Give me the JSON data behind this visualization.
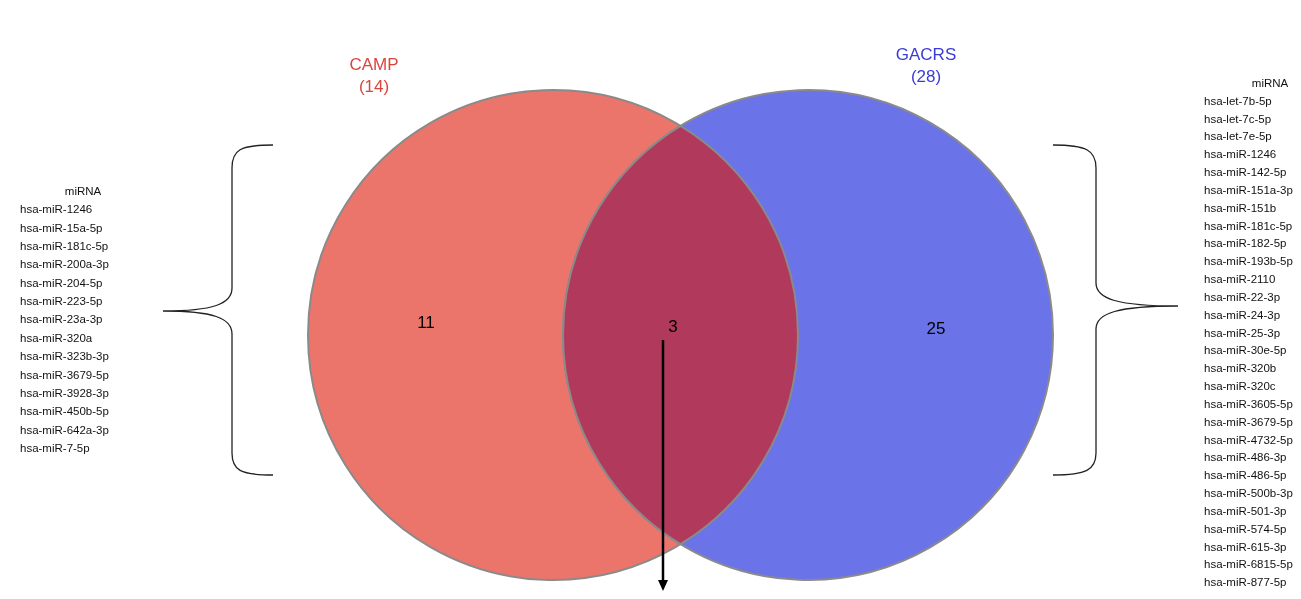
{
  "chart_data": {
    "type": "other",
    "categories": [
      null,
      null,
      null
    ],
    "values": [
      11,
      3,
      25
    ],
    "colors": [
      "#ec756b",
      "#b13a5c",
      "#6b73e9"
    ],
    "data_labels": true,
    "annotations": [
      "CAMP\n(14)",
      "GACRS\n(28)",
      "miRNA\nhsa-miR-1246\nhsa-miR-15a-5p\nhsa-miR-181c-5p\nhsa-miR-200a-3p\nhsa-miR-204-5p\nhsa-miR-223-5p\nhsa-miR-23a-3p\nhsa-miR-320a\nhsa-miR-323b-3p\nhsa-miR-3679-5p\nhsa-miR-3928-3p\nhsa-miR-450b-5p\nhsa-miR-642a-3p\nhsa-miR-7-5p",
      "miRNA\nhsa-let-7b-5p\nhsa-let-7c-5p\nhsa-let-7e-5p\nhsa-miR-1246\nhsa-miR-142-5p\nhsa-miR-151a-3p\nhsa-miR-151b\nhsa-miR-181c-5p\nhsa-miR-182-5p\nhsa-miR-193b-5p\nhsa-miR-2110\nhsa-miR-22-3p\nhsa-miR-24-3p\nhsa-miR-25-3p\nhsa-miR-30e-5p\nhsa-miR-320b\nhsa-miR-320c\nhsa-miR-3605-5p\nhsa-miR-3679-5p\nhsa-miR-4732-5p\nhsa-miR-486-3p\nhsa-miR-486-5p\nhsa-miR-500b-3p\nhsa-miR-501-3p\nhsa-miR-574-5p\nhsa-miR-615-3p\nhsa-miR-6815-5p\nhsa-miR-877-5p"
    ]
  }
}
